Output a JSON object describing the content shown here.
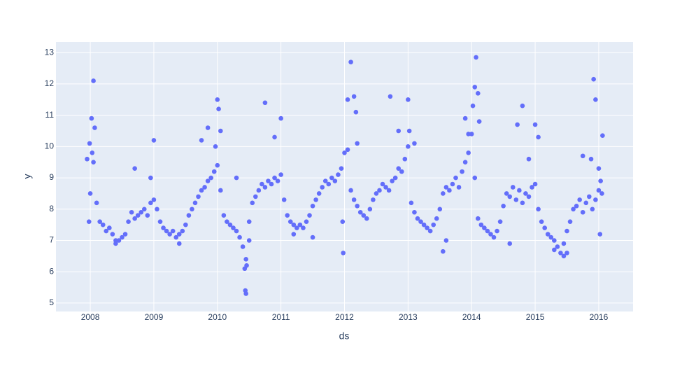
{
  "chart_data": {
    "type": "scatter",
    "xlabel": "ds",
    "ylabel": "y",
    "color": "#636efa",
    "grid": true,
    "xlim": [
      2007.46,
      2016.54
    ],
    "ylim": [
      4.73,
      13.34
    ],
    "xticks": [
      2008,
      2009,
      2010,
      2011,
      2012,
      2013,
      2014,
      2015,
      2016
    ],
    "yticks": [
      5,
      6,
      7,
      8,
      9,
      10,
      11,
      12,
      13
    ],
    "x": [
      2007.95,
      2008,
      2008.05,
      2008.1,
      2008.15,
      2008.2,
      2008.25,
      2008.3,
      2008.35,
      2008.4,
      2008.45,
      2008.5,
      2008.55,
      2008.6,
      2008.65,
      2008.7,
      2008.75,
      2008.8,
      2008.85,
      2008.9,
      2008.95,
      2009,
      2009.05,
      2009.1,
      2009.15,
      2009.2,
      2009.25,
      2009.3,
      2009.35,
      2009.4,
      2009.45,
      2009.5,
      2009.55,
      2009.6,
      2009.65,
      2009.7,
      2009.75,
      2009.8,
      2009.85,
      2009.9,
      2009.95,
      2010,
      2010.05,
      2010.1,
      2010.15,
      2010.2,
      2010.25,
      2010.3,
      2010.35,
      2010.4,
      2010.45,
      2010.5,
      2010.55,
      2010.6,
      2010.65,
      2010.7,
      2010.75,
      2010.8,
      2010.85,
      2010.9,
      2010.95,
      2011,
      2011.05,
      2011.1,
      2011.15,
      2011.2,
      2011.25,
      2011.3,
      2011.35,
      2011.4,
      2011.45,
      2011.5,
      2011.55,
      2011.6,
      2011.65,
      2011.7,
      2011.75,
      2011.8,
      2011.85,
      2011.9,
      2011.95,
      2012,
      2012.05,
      2012.1,
      2012.15,
      2012.2,
      2012.25,
      2012.3,
      2012.35,
      2012.4,
      2012.45,
      2012.5,
      2012.55,
      2012.6,
      2012.65,
      2012.7,
      2012.75,
      2012.8,
      2012.85,
      2012.9,
      2012.95,
      2013,
      2013.05,
      2013.1,
      2013.15,
      2013.2,
      2013.25,
      2013.3,
      2013.35,
      2013.4,
      2013.45,
      2013.5,
      2013.55,
      2013.6,
      2013.65,
      2013.7,
      2013.75,
      2013.8,
      2013.85,
      2013.9,
      2013.95,
      2014,
      2014.05,
      2014.1,
      2014.15,
      2014.2,
      2014.25,
      2014.3,
      2014.35,
      2014.4,
      2014.45,
      2014.5,
      2014.55,
      2014.6,
      2014.65,
      2014.7,
      2014.75,
      2014.8,
      2014.85,
      2014.9,
      2014.95,
      2015,
      2015.05,
      2015.1,
      2015.15,
      2015.2,
      2015.25,
      2015.3,
      2015.35,
      2015.4,
      2015.45,
      2015.5,
      2015.55,
      2015.6,
      2015.65,
      2015.7,
      2015.75,
      2015.8,
      2015.85,
      2015.9,
      2015.95,
      2016,
      2016.05,
      2008.05,
      2008.02,
      2008.07,
      2007.99,
      2008.03,
      2007.98,
      2008.4,
      2008.7,
      2009,
      2008.95,
      2009.4,
      2009.75,
      2009.85,
      2010,
      2010.02,
      2009.97,
      2010.05,
      2010.3,
      2010.44,
      2010.45,
      2010.46,
      2010.43,
      2010.5,
      2010.75,
      2010.9,
      2011,
      2011.2,
      2011.5,
      2011.98,
      2011.97,
      2012.1,
      2012.15,
      2012.05,
      2012.18,
      2012.2,
      2012.72,
      2012.85,
      2013,
      2013.02,
      2013.1,
      2013.55,
      2013.6,
      2013.9,
      2013.95,
      2014.02,
      2014.05,
      2014.07,
      2014.1,
      2014.12,
      2014.6,
      2014.72,
      2014.8,
      2014.9,
      2015,
      2015.05,
      2015.3,
      2015.45,
      2015.5,
      2015.75,
      2015.88,
      2015.92,
      2015.95,
      2016,
      2016.03,
      2016.06,
      2016.02
    ],
    "values": [
      9.6,
      8.5,
      9.5,
      8.2,
      7.6,
      7.5,
      7.3,
      7.4,
      7.2,
      7.0,
      7.0,
      7.1,
      7.2,
      7.6,
      7.9,
      7.7,
      7.8,
      7.9,
      8.0,
      7.8,
      8.2,
      8.3,
      8.0,
      7.6,
      7.4,
      7.3,
      7.2,
      7.3,
      7.1,
      7.2,
      7.3,
      7.5,
      7.8,
      8.0,
      8.2,
      8.4,
      8.6,
      8.7,
      8.9,
      9.0,
      9.2,
      9.4,
      8.6,
      7.8,
      7.6,
      7.5,
      7.4,
      7.3,
      7.1,
      6.8,
      6.4,
      7.6,
      8.2,
      8.4,
      8.6,
      8.8,
      8.7,
      8.9,
      8.8,
      9.0,
      8.9,
      9.1,
      8.3,
      7.8,
      7.6,
      7.5,
      7.4,
      7.5,
      7.4,
      7.6,
      7.8,
      8.1,
      8.3,
      8.5,
      8.7,
      8.9,
      8.8,
      9.0,
      8.9,
      9.1,
      9.3,
      9.8,
      9.9,
      8.6,
      8.3,
      8.1,
      7.9,
      7.8,
      7.7,
      8.0,
      8.3,
      8.5,
      8.6,
      8.8,
      8.7,
      8.6,
      8.9,
      9.0,
      9.3,
      9.2,
      9.6,
      10.0,
      8.2,
      7.9,
      7.7,
      7.6,
      7.5,
      7.4,
      7.3,
      7.5,
      7.7,
      8.0,
      8.5,
      8.7,
      8.6,
      8.8,
      9.0,
      8.7,
      9.2,
      9.5,
      9.8,
      10.4,
      9.0,
      7.7,
      7.5,
      7.4,
      7.3,
      7.2,
      7.1,
      7.3,
      7.6,
      8.1,
      8.5,
      8.4,
      8.7,
      8.3,
      8.6,
      8.2,
      8.5,
      8.4,
      8.7,
      8.8,
      8.0,
      7.6,
      7.4,
      7.2,
      7.1,
      7.0,
      6.8,
      6.6,
      6.9,
      7.3,
      7.6,
      8.0,
      8.1,
      8.3,
      7.9,
      8.2,
      8.4,
      8.0,
      8.3,
      8.6,
      8.5,
      12.1,
      10.9,
      10.6,
      10.1,
      9.8,
      7.6,
      6.9,
      9.3,
      10.2,
      9.0,
      6.9,
      10.2,
      10.6,
      11.5,
      11.2,
      10.0,
      10.5,
      9.0,
      5.4,
      5.3,
      6.2,
      6.1,
      7.0,
      11.4,
      10.3,
      10.9,
      7.2,
      7.1,
      6.6,
      7.6,
      12.7,
      11.6,
      11.5,
      11.1,
      10.1,
      11.6,
      10.5,
      11.5,
      10.5,
      10.1,
      6.65,
      7.0,
      10.9,
      10.4,
      11.3,
      11.9,
      12.85,
      11.7,
      10.8,
      6.9,
      10.7,
      11.3,
      9.6,
      10.7,
      10.3,
      6.7,
      6.5,
      6.6,
      9.7,
      9.6,
      12.15,
      11.5,
      9.3,
      8.9,
      10.35,
      7.2
    ]
  }
}
